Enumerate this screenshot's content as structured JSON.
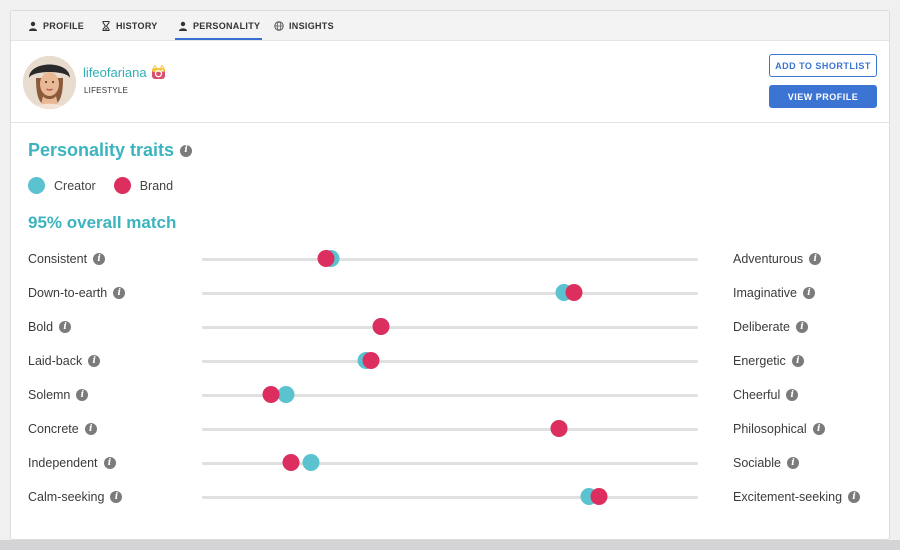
{
  "tabs": [
    {
      "label": "PROFILE",
      "icon": "person-icon",
      "active": false
    },
    {
      "label": "HISTORY",
      "icon": "hourglass-icon",
      "active": false
    },
    {
      "label": "PERSONALITY",
      "icon": "person-icon",
      "active": true
    },
    {
      "label": "INSIGHTS",
      "icon": "globe-icon",
      "active": false
    }
  ],
  "profile": {
    "username": "lifeofariana",
    "category": "LIFESTYLE",
    "platform_icon": "instagram-icon"
  },
  "buttons": {
    "shortlist": "ADD TO SHORTLIST",
    "view_profile": "VIEW PROFILE"
  },
  "section": {
    "title": "Personality traits",
    "match": "95% overall match"
  },
  "legend": {
    "creator": "Creator",
    "brand": "Brand"
  },
  "colors": {
    "creator": "#5bc2cf",
    "brand": "#dc2f5f",
    "accent": "#3b74d3",
    "teal_text": "#3cb4bf"
  },
  "traits": [
    {
      "left": "Consistent",
      "right": "Adventurous",
      "creator": 0.26,
      "brand": 0.25
    },
    {
      "left": "Down-to-earth",
      "right": "Imaginative",
      "creator": 0.73,
      "brand": 0.75
    },
    {
      "left": "Bold",
      "right": "Deliberate",
      "creator": 0.36,
      "brand": 0.36
    },
    {
      "left": "Laid-back",
      "right": "Energetic",
      "creator": 0.33,
      "brand": 0.34
    },
    {
      "left": "Solemn",
      "right": "Cheerful",
      "creator": 0.17,
      "brand": 0.14
    },
    {
      "left": "Concrete",
      "right": "Philosophical",
      "creator": 0.72,
      "brand": 0.72
    },
    {
      "left": "Independent",
      "right": "Sociable",
      "creator": 0.22,
      "brand": 0.18
    },
    {
      "left": "Calm-seeking",
      "right": "Excitement-seeking",
      "creator": 0.78,
      "brand": 0.8
    }
  ]
}
